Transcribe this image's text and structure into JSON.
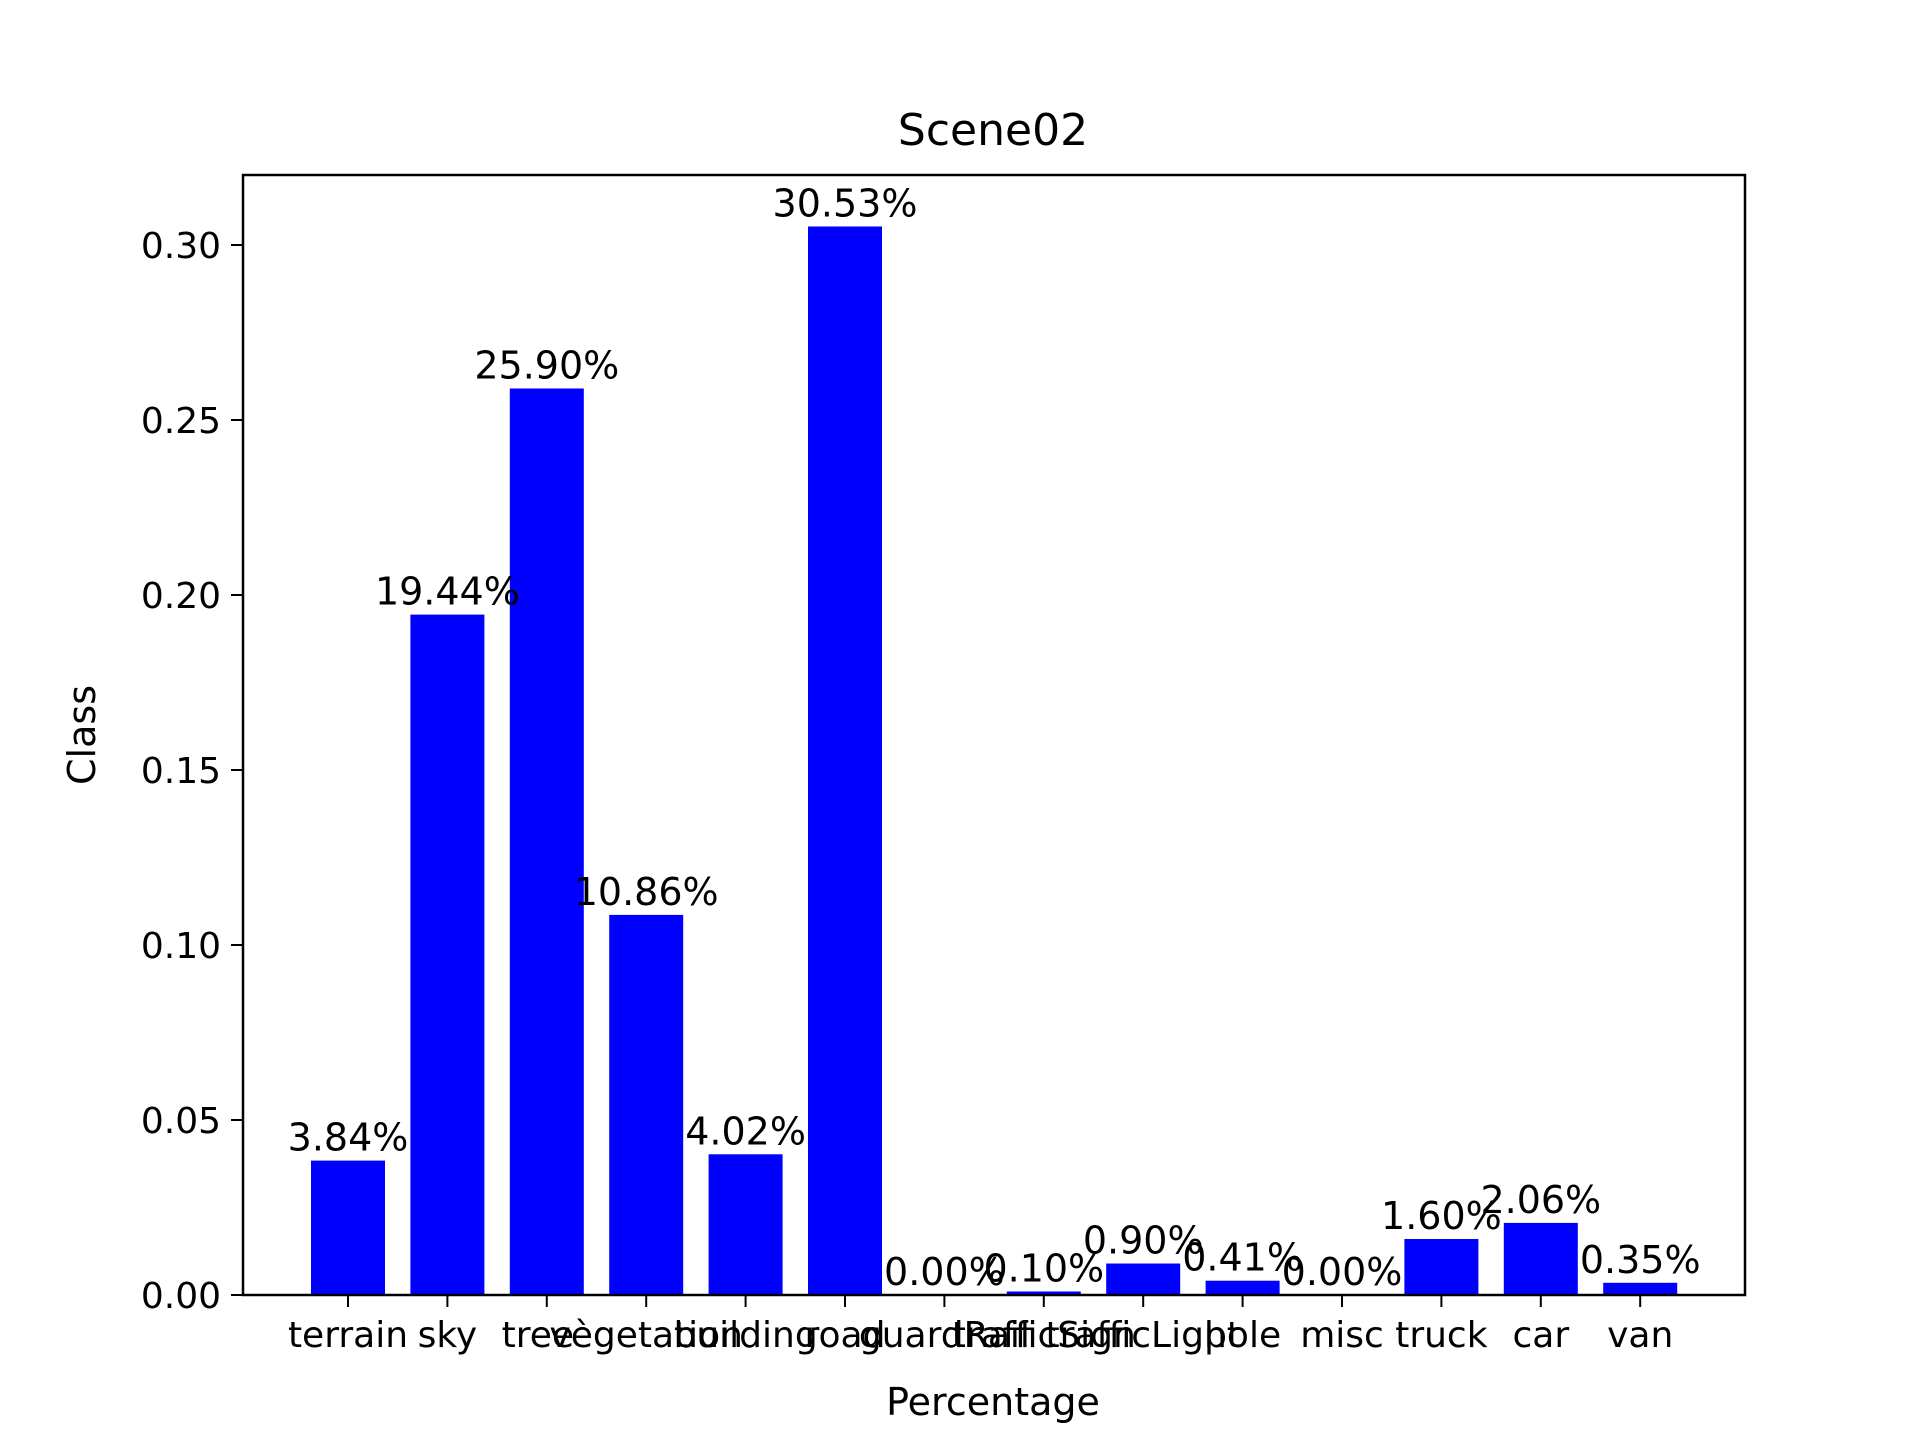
{
  "chart_data": {
    "type": "bar",
    "title": "Scene02",
    "xlabel": "Percentage",
    "ylabel": "Class",
    "categories": [
      "terrain",
      "sky",
      "tree`",
      "vegetation",
      "building",
      "road",
      "guardRail",
      "trafficSign",
      "trafficLight",
      "pole",
      "misc",
      "truck",
      "car",
      "van"
    ],
    "values": [
      0.0384,
      0.1944,
      0.259,
      0.1086,
      0.0402,
      0.3053,
      0.0,
      0.001,
      0.009,
      0.0041,
      0.0,
      0.016,
      0.0206,
      0.0035
    ],
    "value_labels": [
      "3.84%",
      "19.44%",
      "25.90%",
      "10.86%",
      "4.02%",
      "30.53%",
      "0.00%",
      "0.10%",
      "0.90%",
      "0.41%",
      "0.00%",
      "1.60%",
      "2.06%",
      "0.35%"
    ],
    "yticks": [
      0.0,
      0.05,
      0.1,
      0.15,
      0.2,
      0.25,
      0.3
    ],
    "ytick_labels": [
      "0.00",
      "0.05",
      "0.10",
      "0.15",
      "0.20",
      "0.25",
      "0.30"
    ],
    "ylim": [
      0,
      0.32
    ],
    "grid": false,
    "bar_color": "#0000ff"
  }
}
